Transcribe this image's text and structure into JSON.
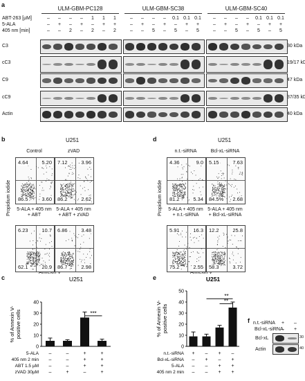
{
  "panel_letters": {
    "a": "a",
    "b": "b",
    "c": "c",
    "d": "d",
    "e": "e",
    "f": "f"
  },
  "panel_a": {
    "groups": [
      "ULM-GBM-PC128",
      "ULM-GBM-SC38",
      "ULM-GBM-SC40"
    ],
    "cond_labels": [
      "ABT-263 [µM]",
      "5-ALA",
      "405 nm [min]"
    ],
    "conditions": {
      "abt": [
        "–",
        "–",
        "–",
        "–",
        "1",
        "1",
        "1"
      ],
      "ala": [
        "–",
        "+",
        "–",
        "+",
        "–",
        "+",
        "+"
      ],
      "nm": [
        "–",
        "–",
        "2",
        "–",
        "2",
        "–",
        "2"
      ]
    },
    "conditions_sc": {
      "abt": [
        "–",
        "–",
        "–",
        "–",
        "0.1",
        "0.1",
        "0.1"
      ],
      "ala": [
        "–",
        "+",
        "–",
        "+",
        "–",
        "+",
        "+"
      ],
      "nm": [
        "–",
        "–",
        "5",
        "–",
        "5",
        "–",
        "5"
      ]
    },
    "blots": [
      {
        "name": "C3",
        "kda": "30 kDa"
      },
      {
        "name": "cC3",
        "kda": "19/17 kDa"
      },
      {
        "name": "C9",
        "kda": "47 kDa"
      },
      {
        "name": "cC9",
        "kda": "37/35 kDa"
      },
      {
        "name": "Actin",
        "kda": "40 kDa"
      }
    ]
  },
  "panel_b": {
    "title": "U251",
    "ylabel": "Propidium iodide",
    "xlabel": "Annexin V",
    "plots": [
      {
        "label": "Control",
        "q": [
          "4.64",
          "5.20",
          "86.5",
          "3.60"
        ]
      },
      {
        "label": "zVAD",
        "q": [
          "7.12",
          "3.96",
          "86.2",
          "2.62"
        ]
      },
      {
        "label": "5-ALA + 405 nm\n+ ABT",
        "q": [
          "6.23",
          "10.7",
          "62.1",
          "20.9"
        ]
      },
      {
        "label": "5-ALA + 405 nm\n+ ABT + zVAD",
        "q": [
          "6.86",
          "3.48",
          "86.7",
          "2.98"
        ]
      }
    ]
  },
  "panel_d": {
    "title": "U251",
    "ylabel": "Propidium iodide",
    "xlabel": "Annexin V",
    "plots": [
      {
        "label": "n.t.-siRNA",
        "q": [
          "4.36",
          "9.0",
          "81.2",
          "5.34"
        ]
      },
      {
        "label": "Bcl-xL-siRNA",
        "q": [
          "5.15",
          "7.63",
          "84.5%",
          "2.68"
        ]
      },
      {
        "label": "5-ALA + 405 nm\n+ n.t.-siRNA",
        "q": [
          "5.91",
          "16.3",
          "75.2",
          "2.55"
        ]
      },
      {
        "label": "5-ALA + 405 nm\n+ Bcl-xL-siRNA",
        "q": [
          "12.2",
          "25.8",
          "58.3",
          "3.72"
        ]
      }
    ]
  },
  "chart_data": [
    {
      "type": "bar",
      "title": "U251",
      "ylabel": "% of Annexin V-positive cells",
      "ylim": [
        0,
        40
      ],
      "yticks": [
        "0",
        "10",
        "20",
        "30",
        "40"
      ],
      "categories": [
        "1",
        "2",
        "3",
        "4"
      ],
      "values": [
        5,
        5,
        26,
        5
      ],
      "errors": [
        2.5,
        1,
        5,
        1.5
      ],
      "significance": "***",
      "condition_rows": [
        {
          "label": "5-ALA",
          "marks": [
            "–",
            "–",
            "+",
            "+"
          ]
        },
        {
          "label": "405 nm 2 min",
          "marks": [
            "–",
            "–",
            "+",
            "+"
          ]
        },
        {
          "label": "ABT 1.5 µM",
          "marks": [
            "–",
            "–",
            "+",
            "+"
          ]
        },
        {
          "label": "zVAD 30µM",
          "marks": [
            "–",
            "+",
            "–",
            "+"
          ]
        }
      ]
    },
    {
      "type": "bar",
      "title": "U251",
      "ylabel": "% of Annexin V-positive cells",
      "ylim": [
        0,
        50
      ],
      "yticks": [
        "0",
        "10",
        "20",
        "30",
        "40",
        "50"
      ],
      "categories": [
        "1",
        "2",
        "3",
        "4"
      ],
      "values": [
        9,
        9,
        17,
        35
      ],
      "errors": [
        4,
        2,
        2,
        5
      ],
      "significance": [
        "**",
        "**"
      ],
      "condition_rows": [
        {
          "label": "n.t.-siRNA",
          "marks": [
            "+",
            "–",
            "+",
            "–"
          ]
        },
        {
          "label": "Bcl-xL-siRNA",
          "marks": [
            "–",
            "+",
            "–",
            "+"
          ]
        },
        {
          "label": "5-ALA",
          "marks": [
            "–",
            "–",
            "+",
            "+"
          ]
        },
        {
          "label": "405 nm 2 min",
          "marks": [
            "–",
            "–",
            "+",
            "+"
          ]
        }
      ]
    }
  ],
  "panel_f": {
    "rows": [
      {
        "label": "n.t.-siRNA",
        "marks": [
          "+",
          "–"
        ]
      },
      {
        "label": "Bcl-xL-siRNA",
        "marks": [
          "–",
          "+"
        ]
      }
    ],
    "blots": [
      {
        "name": "Bcl-xL",
        "kda": "30 kDa"
      },
      {
        "name": "Actin",
        "kda": "40 kDa"
      }
    ]
  }
}
